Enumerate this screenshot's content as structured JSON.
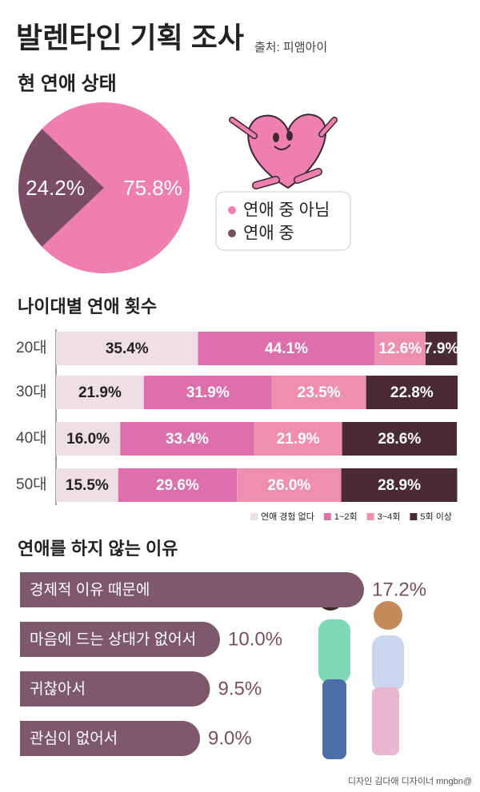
{
  "title": "발렌타인 기획 조사",
  "source": "출처: 피앰아이",
  "credit": "디자인 김다애 디자이너 mngbn@",
  "chart_data": [
    {
      "type": "pie",
      "title": "현 연애 상태",
      "categories": [
        "연애 중 아님",
        "연애 중"
      ],
      "values": [
        75.8,
        24.2
      ],
      "value_labels": [
        "75.8%",
        "24.2%"
      ],
      "colors": [
        "#ee7fb0",
        "#7b4d63"
      ]
    },
    {
      "type": "stacked-bar",
      "title": "나이대별 연애 횟수",
      "categories": [
        "20대",
        "30대",
        "40대",
        "50대"
      ],
      "series": [
        {
          "name": "연애 경험 없다",
          "color": "#eedfe4",
          "values": [
            35.4,
            21.9,
            16.0,
            15.5
          ],
          "value_labels": [
            "35.4%",
            "21.9%",
            "16.0%",
            "15.5%"
          ]
        },
        {
          "name": "1~2회",
          "color": "#dd6fac",
          "values": [
            44.1,
            31.9,
            33.4,
            29.6
          ],
          "value_labels": [
            "44.1%",
            "31.9%",
            "33.4%",
            "29.6%"
          ]
        },
        {
          "name": "3~4회",
          "color": "#ee8fb2",
          "values": [
            12.6,
            23.5,
            21.9,
            26.0
          ],
          "value_labels": [
            "12.6%",
            "23.5%",
            "21.9%",
            "26.0%"
          ]
        },
        {
          "name": "5회 이상",
          "color": "#4a2a37",
          "values": [
            7.9,
            22.8,
            28.6,
            28.9
          ],
          "value_labels": [
            "7.9%",
            "22.8%",
            "28.6%",
            "28.9%"
          ]
        }
      ]
    },
    {
      "type": "hbar",
      "title": "연애를 하지 않는 이유",
      "categories": [
        "경제적 이유 때문에",
        "마음에 드는 상대가 없어서",
        "귀찮아서",
        "관심이 없어서"
      ],
      "values": [
        17.2,
        10.0,
        9.5,
        9.0
      ],
      "value_labels": [
        "17.2%",
        "10.0%",
        "9.5%",
        "9.0%"
      ],
      "color": "#7d596b"
    }
  ]
}
